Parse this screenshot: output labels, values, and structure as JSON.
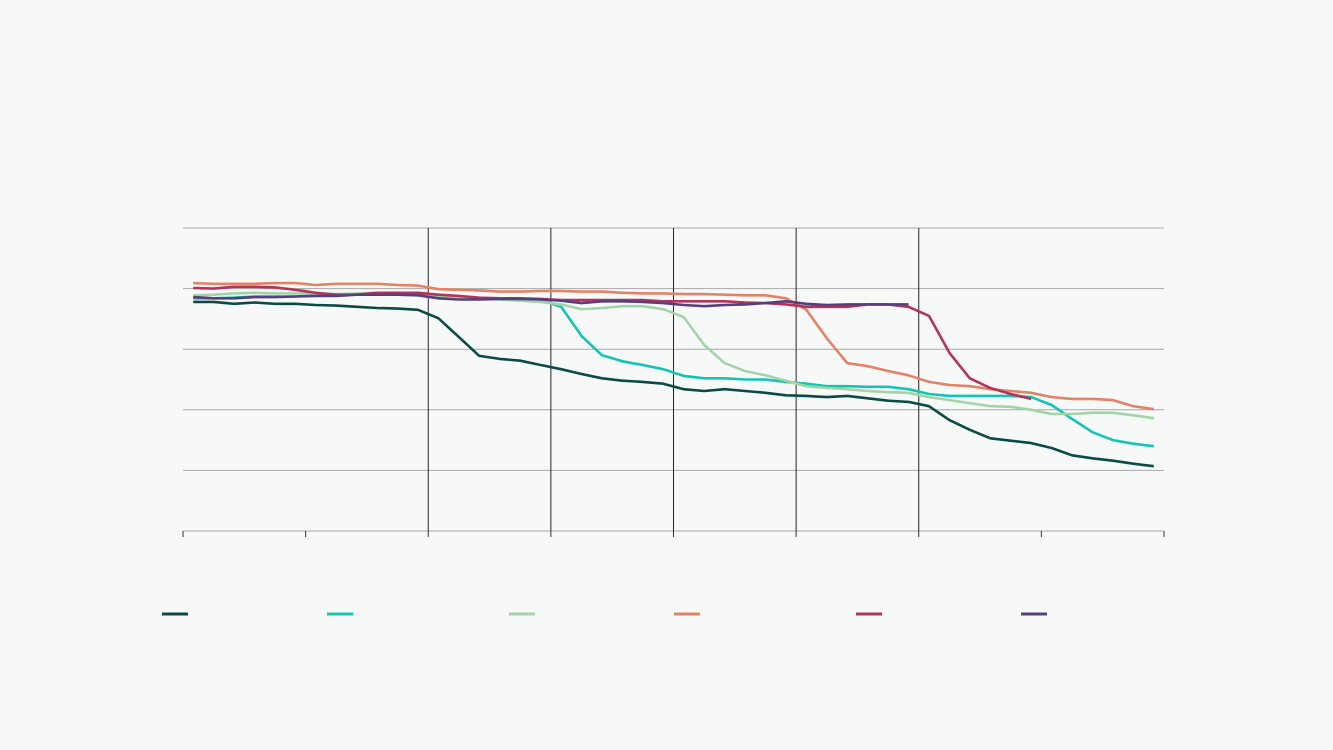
{
  "chart_data": {
    "type": "line",
    "x": [
      0.5,
      1.5,
      2.5,
      3.5,
      4.5,
      5.5,
      6.5,
      7.5,
      8.5,
      9.5,
      10.5,
      11.5,
      12.5,
      13.5,
      14.5,
      15.5,
      16.5,
      17.5,
      18.5,
      19.5,
      20.5,
      21.5,
      22.5,
      23.5,
      24.5,
      25.5,
      26.5,
      27.5,
      28.5,
      29.5,
      30.5,
      31.5,
      32.5,
      33.5,
      34.5,
      35.5,
      36.5,
      37.5,
      38.5,
      39.5,
      40.5,
      41.5,
      42.5,
      43.5,
      44.5,
      45.5,
      46.5,
      47.5
    ],
    "xlim": [
      0,
      48
    ],
    "xticks": [
      0,
      6,
      12,
      18,
      24,
      30,
      36,
      42,
      48
    ],
    "vlines": [
      12,
      18,
      24,
      30,
      36
    ],
    "ylim": [
      0,
      5
    ],
    "yticks": [
      0,
      1,
      2,
      3,
      4,
      5
    ],
    "grid": true,
    "series": [
      {
        "color": "#0b4a45",
        "values": [
          3.78,
          3.78,
          3.75,
          3.77,
          3.75,
          3.75,
          3.73,
          3.72,
          3.7,
          3.68,
          3.67,
          3.65,
          3.51,
          3.2,
          2.89,
          2.84,
          2.81,
          2.74,
          2.67,
          2.59,
          2.52,
          2.48,
          2.46,
          2.43,
          2.34,
          2.31,
          2.34,
          2.31,
          2.28,
          2.24,
          2.23,
          2.21,
          2.23,
          2.19,
          2.15,
          2.13,
          2.06,
          1.83,
          1.67,
          1.53,
          1.49,
          1.45,
          1.37,
          1.25,
          1.2,
          1.16,
          1.11,
          1.07
        ]
      },
      {
        "color": "#13c4b4",
        "values": [
          3.84,
          3.84,
          3.85,
          3.87,
          3.87,
          3.87,
          3.89,
          3.9,
          3.9,
          3.9,
          3.9,
          3.9,
          3.85,
          3.84,
          3.84,
          3.83,
          3.83,
          3.81,
          3.7,
          3.22,
          2.9,
          2.8,
          2.74,
          2.67,
          2.56,
          2.52,
          2.52,
          2.5,
          2.5,
          2.46,
          2.43,
          2.39,
          2.39,
          2.38,
          2.38,
          2.34,
          2.26,
          2.23,
          2.23,
          2.23,
          2.23,
          2.21,
          2.08,
          1.85,
          1.63,
          1.5,
          1.44,
          1.4
        ]
      },
      {
        "color": "#a3d4a7",
        "values": [
          3.89,
          3.9,
          3.92,
          3.93,
          3.92,
          3.92,
          3.92,
          3.91,
          3.92,
          3.93,
          3.92,
          3.91,
          3.87,
          3.85,
          3.84,
          3.82,
          3.8,
          3.78,
          3.74,
          3.66,
          3.68,
          3.71,
          3.71,
          3.66,
          3.53,
          3.07,
          2.77,
          2.64,
          2.57,
          2.48,
          2.39,
          2.36,
          2.34,
          2.31,
          2.29,
          2.28,
          2.21,
          2.16,
          2.11,
          2.06,
          2.05,
          2.0,
          1.93,
          1.93,
          1.95,
          1.95,
          1.91,
          1.86
        ]
      },
      {
        "color": "#e48266",
        "values": [
          4.09,
          4.08,
          4.08,
          4.08,
          4.09,
          4.09,
          4.06,
          4.08,
          4.08,
          4.08,
          4.06,
          4.05,
          3.99,
          3.98,
          3.97,
          3.95,
          3.95,
          3.96,
          3.96,
          3.95,
          3.95,
          3.93,
          3.92,
          3.92,
          3.91,
          3.91,
          3.9,
          3.89,
          3.89,
          3.84,
          3.65,
          3.18,
          2.77,
          2.72,
          2.64,
          2.57,
          2.46,
          2.41,
          2.39,
          2.34,
          2.31,
          2.28,
          2.21,
          2.18,
          2.18,
          2.16,
          2.06,
          2.01
        ]
      },
      {
        "color": "#b5335a",
        "values": [
          4.01,
          4.0,
          4.03,
          4.03,
          4.02,
          3.98,
          3.93,
          3.9,
          3.9,
          3.93,
          3.93,
          3.93,
          3.9,
          3.88,
          3.85,
          3.84,
          3.84,
          3.83,
          3.81,
          3.81,
          3.81,
          3.81,
          3.81,
          3.79,
          3.79,
          3.79,
          3.79,
          3.77,
          3.76,
          3.74,
          3.7,
          3.7,
          3.7,
          3.74,
          3.74,
          3.7,
          3.55,
          2.94,
          2.52,
          2.36,
          2.26,
          2.18,
          null,
          null,
          null,
          null,
          null,
          null
        ]
      },
      {
        "color": "#55407f",
        "values": [
          3.86,
          3.84,
          3.84,
          3.86,
          3.86,
          3.87,
          3.88,
          3.88,
          3.9,
          3.9,
          3.9,
          3.89,
          3.84,
          3.82,
          3.82,
          3.83,
          3.83,
          3.82,
          3.8,
          3.76,
          3.79,
          3.79,
          3.78,
          3.76,
          3.73,
          3.71,
          3.73,
          3.74,
          3.76,
          3.79,
          3.75,
          3.73,
          3.74,
          3.74,
          3.74,
          3.74,
          null,
          null,
          null,
          null,
          null,
          null,
          null,
          null,
          null,
          null,
          null,
          null
        ]
      }
    ]
  }
}
